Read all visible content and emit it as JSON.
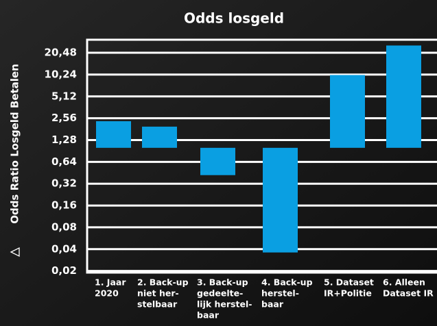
{
  "chart_data": {
    "type": "bar",
    "title": "Odds losgeld",
    "y_label": "Odds Ratio Losgeld Betalen",
    "categories": [
      [
        "1. Jaar",
        "2020"
      ],
      [
        "2. Back-up",
        "niet her-",
        "stelbaar"
      ],
      [
        "3. Back-up",
        "gedeelte-",
        "lijk herstel-",
        "baar"
      ],
      [
        "4. Back-up",
        "herstel-",
        "baar"
      ],
      [
        "5. Dataset",
        "IR+Politie"
      ],
      [
        "6. Alleen",
        "Dataset IR"
      ]
    ],
    "values": [
      2.33,
      1.96,
      0.42,
      0.036,
      10.1,
      25.8
    ],
    "color": "#0a9fe2",
    "log_scale": true,
    "ylim": [
      0.019,
      31
    ],
    "yticks": [
      {
        "value": 0.02,
        "label": "0,02"
      },
      {
        "value": 0.04,
        "label": "0,04"
      },
      {
        "value": 0.08,
        "label": "0,08"
      },
      {
        "value": 0.16,
        "label": "0,16"
      },
      {
        "value": 0.32,
        "label": "0,32"
      },
      {
        "value": 0.64,
        "label": "0,64"
      },
      {
        "value": 1.28,
        "label": "1,28"
      },
      {
        "value": 2.56,
        "label": "2,56"
      },
      {
        "value": 5.12,
        "label": "5,12"
      },
      {
        "value": 10.24,
        "label": "10,24"
      },
      {
        "value": 20.48,
        "label": "20,48"
      }
    ],
    "grid": true
  }
}
